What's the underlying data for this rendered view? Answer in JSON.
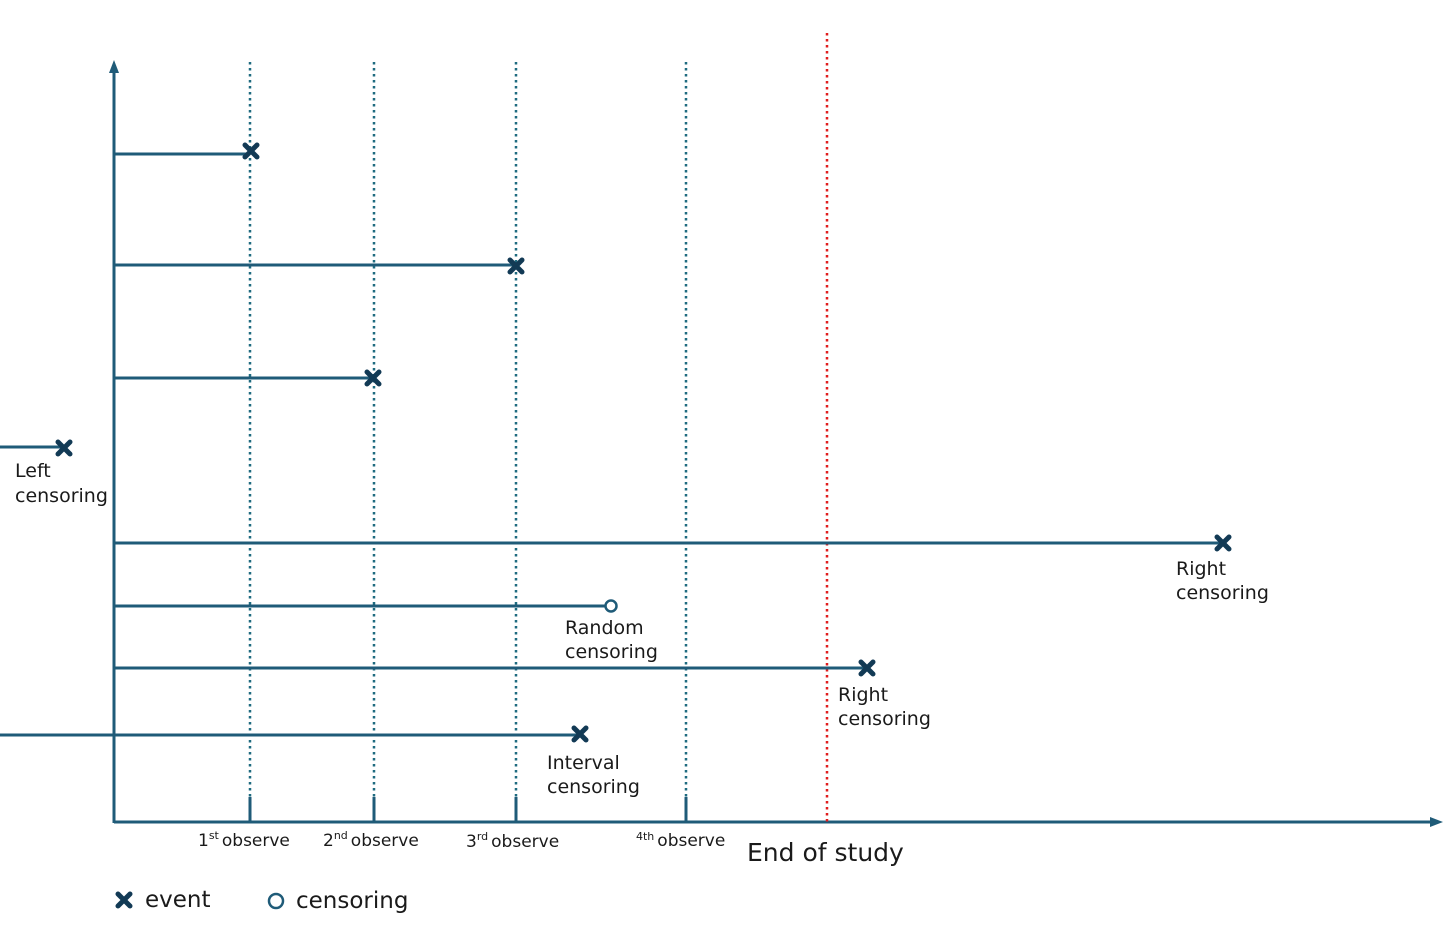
{
  "colors": {
    "line": "#1f5b78",
    "observe_line": "#1f6b80",
    "end_of_study_line": "#e01e1e",
    "event_marker": "#123a55",
    "censor_marker": "#1f5b78",
    "text": "#1a1a1a"
  },
  "observations": [
    {
      "num": "1",
      "sup": "st",
      "word": "observe"
    },
    {
      "num": "2",
      "sup": "nd",
      "word": "observe"
    },
    {
      "num": "3",
      "sup": "rd",
      "word": "observe"
    },
    {
      "num": "4th",
      "sup": "",
      "word": "observe"
    }
  ],
  "end_of_study_label": "End of study",
  "subjects": [
    {
      "marker": "event",
      "labels": []
    },
    {
      "marker": "event",
      "labels": []
    },
    {
      "marker": "event",
      "labels": []
    },
    {
      "marker": "event",
      "labels": [
        "Left",
        "censoring"
      ]
    },
    {
      "marker": "event",
      "labels": [
        "Right",
        "censoring"
      ]
    },
    {
      "marker": "censoring",
      "labels": [
        "Random",
        "censoring"
      ]
    },
    {
      "marker": "event",
      "labels": [
        "Right",
        "censoring"
      ]
    },
    {
      "marker": "event",
      "labels": [
        "Interval",
        "censoring"
      ]
    }
  ],
  "legend": {
    "event_label": "event",
    "censoring_label": "censoring",
    "event_icon": "x-mark-icon",
    "censoring_icon": "circle-icon"
  }
}
